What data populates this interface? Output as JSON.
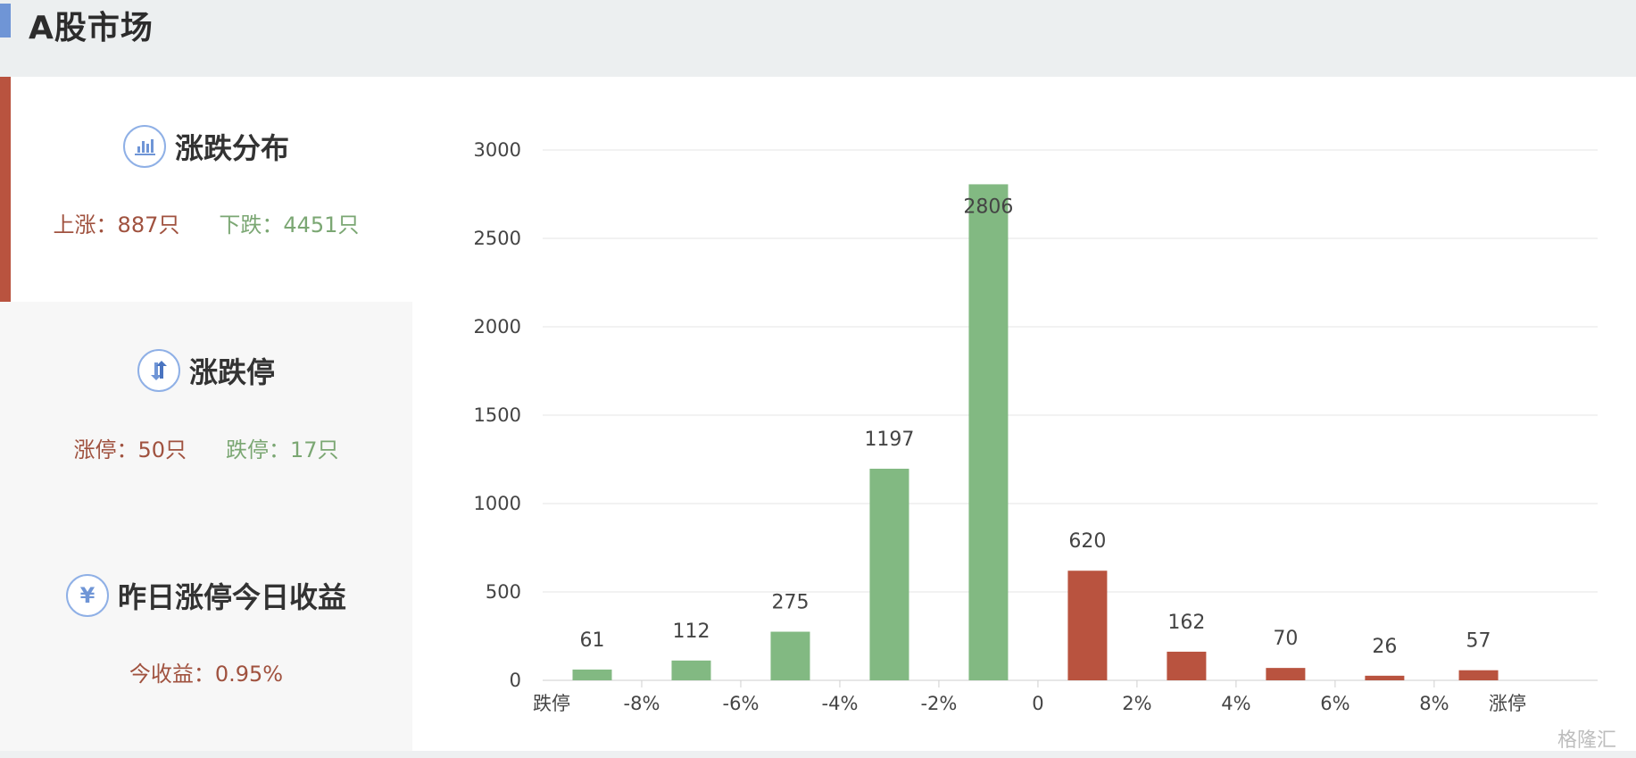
{
  "header": {
    "title": "A股市场"
  },
  "cards": {
    "distribution": {
      "title": "涨跌分布",
      "icon": "bar-chart-icon",
      "up_label": "上涨：887只",
      "down_label": "下跌：4451只"
    },
    "limit": {
      "title": "涨跌停",
      "icon": "up-down-arrows-icon",
      "up_label": "涨停：50只",
      "down_label": "跌停：17只"
    },
    "yesterday": {
      "title": "昨日涨停今日收益",
      "icon": "yen-icon",
      "yen_symbol": "¥",
      "gain_label": "今收益：0.95%"
    }
  },
  "colors": {
    "up": "#b9533f",
    "down": "#82b982",
    "accent": "#6f95d6"
  },
  "watermark": "格隆汇",
  "chart_data": {
    "type": "bar",
    "categories": [
      "跌停",
      "-8%",
      "-6%",
      "-4%",
      "-2%",
      "0",
      "2%",
      "4%",
      "6%",
      "8%",
      "涨停"
    ],
    "bars": [
      {
        "value": 61,
        "direction": "down"
      },
      {
        "value": 112,
        "direction": "down"
      },
      {
        "value": 275,
        "direction": "down"
      },
      {
        "value": 1197,
        "direction": "down"
      },
      {
        "value": 2806,
        "direction": "down"
      },
      {
        "value": 620,
        "direction": "up"
      },
      {
        "value": 162,
        "direction": "up"
      },
      {
        "value": 70,
        "direction": "up"
      },
      {
        "value": 26,
        "direction": "up"
      },
      {
        "value": 57,
        "direction": "up"
      }
    ],
    "yticks": [
      0,
      500,
      1000,
      1500,
      2000,
      2500,
      3000
    ],
    "ylim": [
      0,
      3000
    ],
    "grid": true
  }
}
